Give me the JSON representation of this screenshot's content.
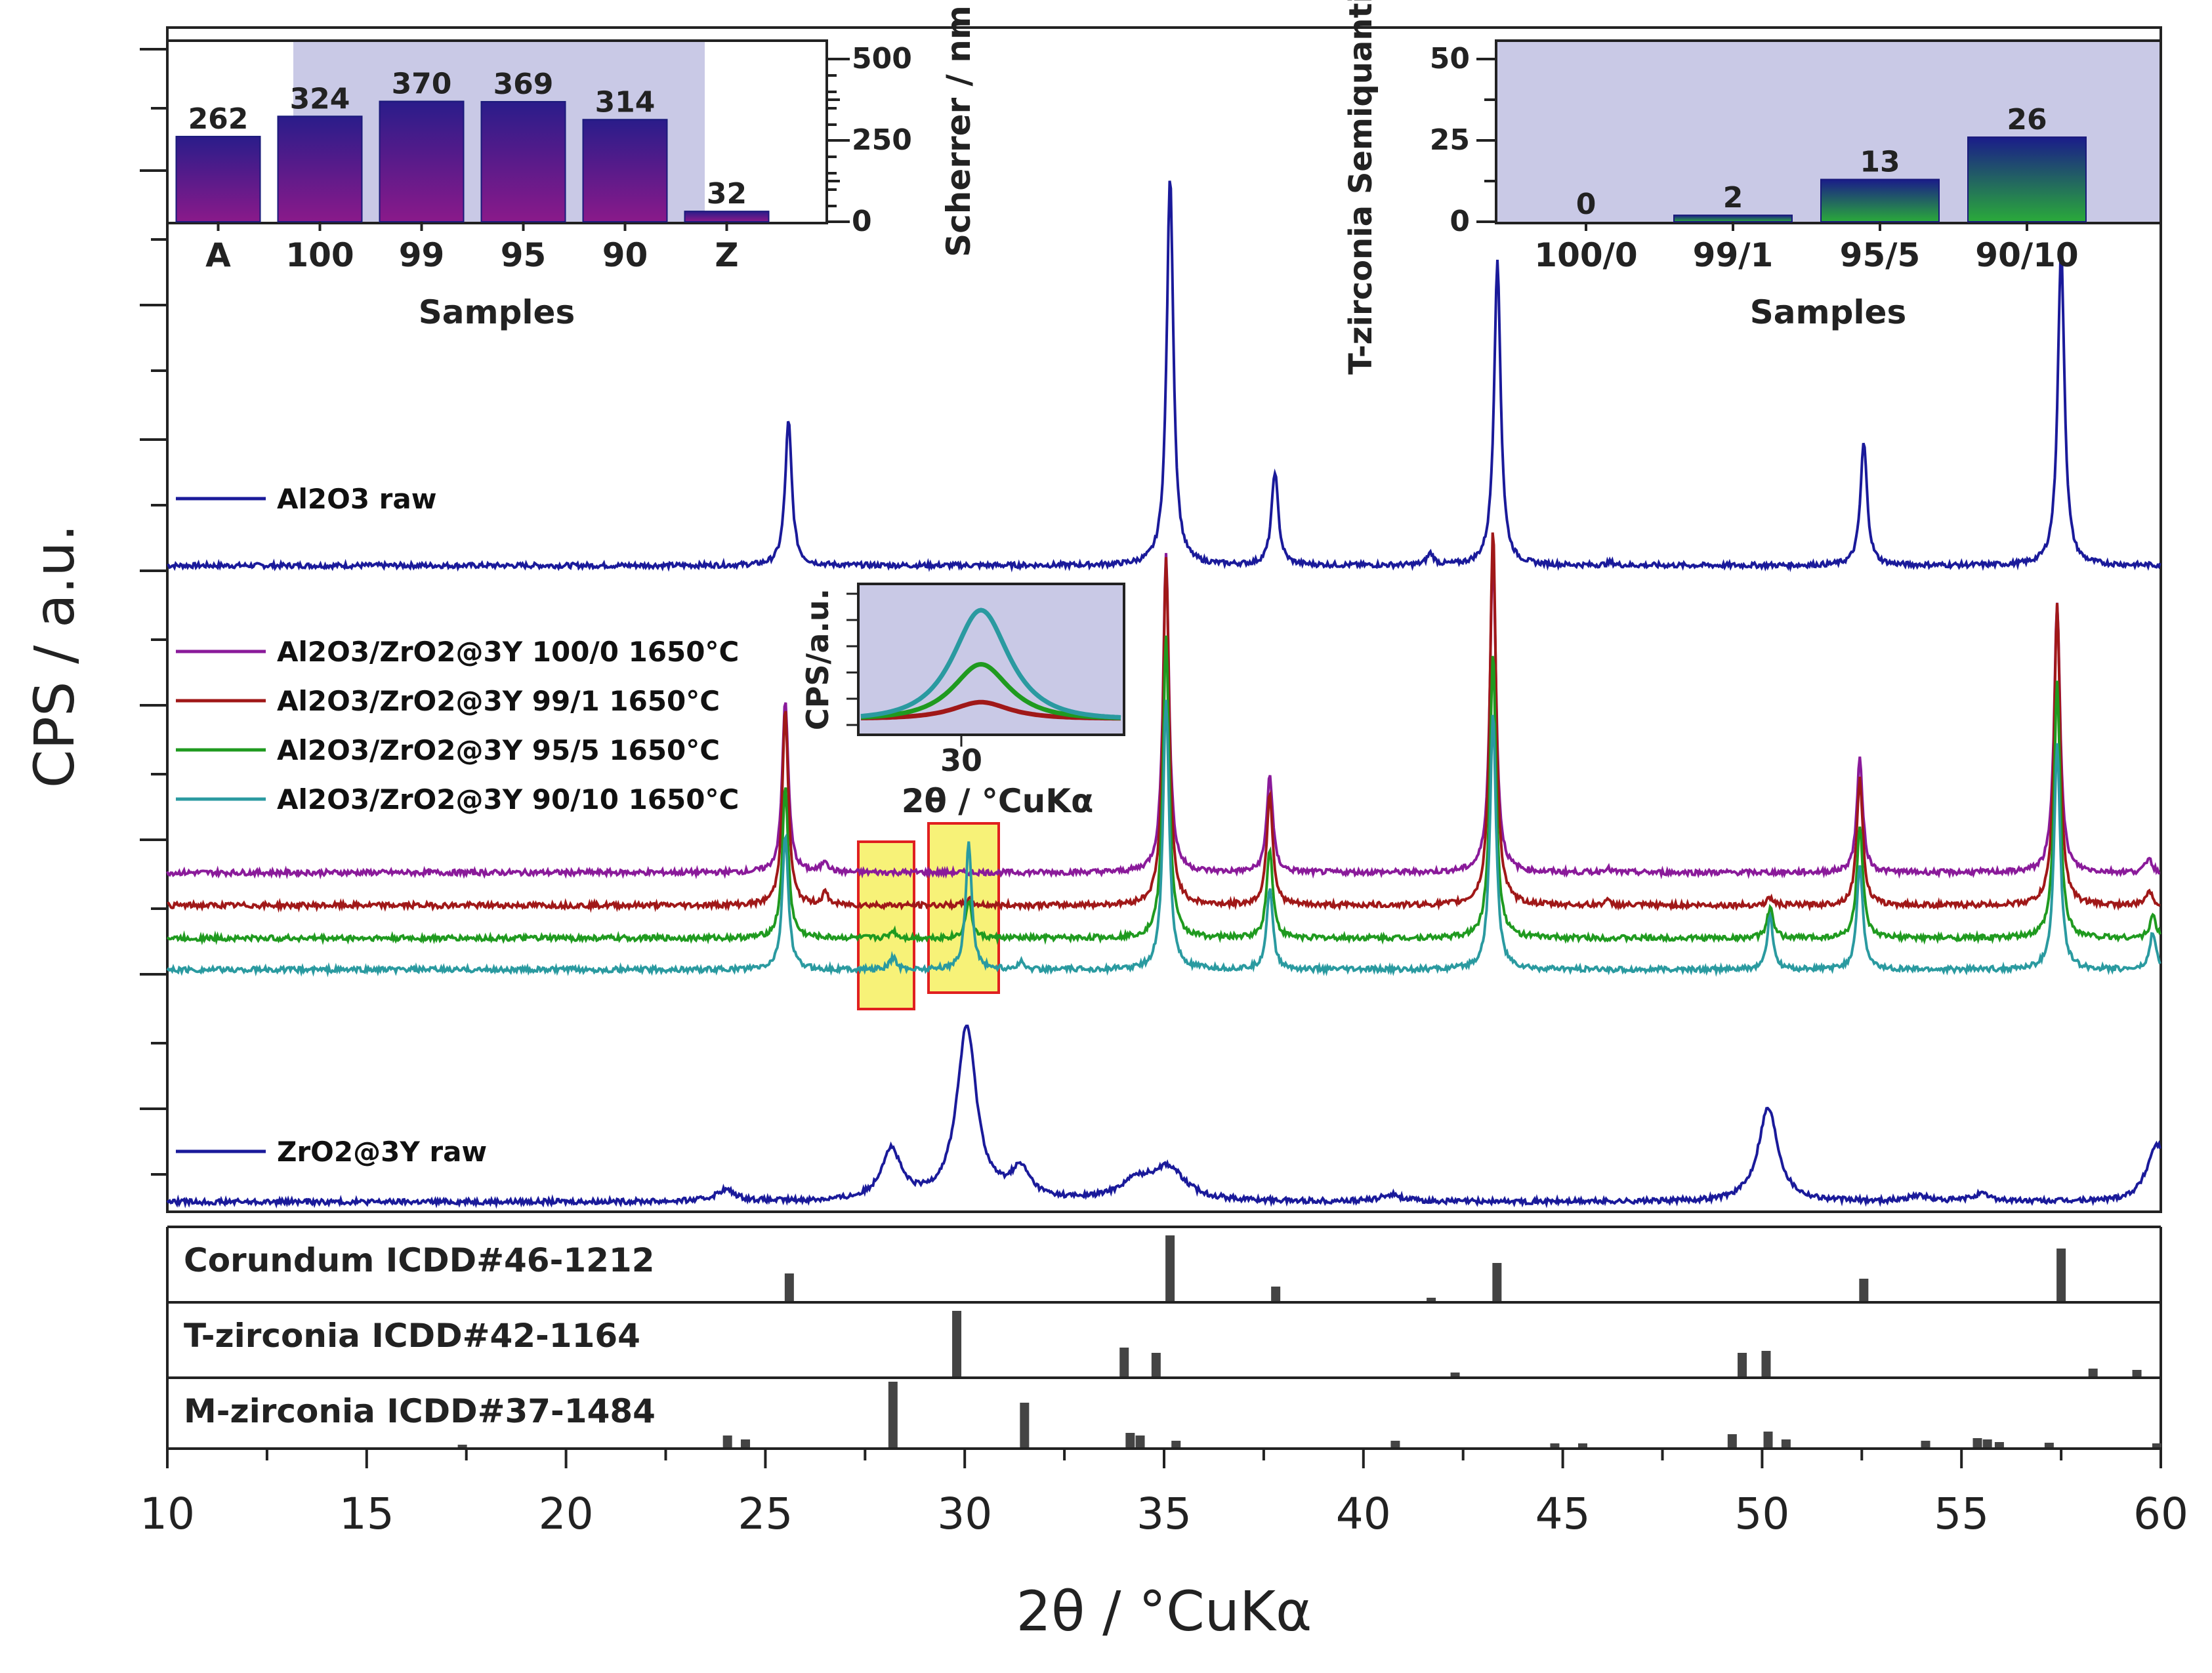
{
  "chart_data": [
    {
      "id": "main",
      "type": "line",
      "xlabel": "2θ / °CuKα",
      "ylabel": "CPS / a.u.",
      "xlim": [
        10,
        60
      ],
      "x_ticks": [
        "10",
        "15",
        "20",
        "25",
        "30",
        "35",
        "40",
        "45",
        "50",
        "55",
        "60"
      ],
      "series": [
        {
          "name": "Al2O3 raw",
          "color": "#1a1a9a",
          "peaks": [
            [
              25.58,
              1.0
            ],
            [
              35.15,
              2.7
            ],
            [
              37.78,
              0.65
            ],
            [
              41.68,
              0.08
            ],
            [
              43.36,
              2.1
            ],
            [
              46.2,
              0.02
            ],
            [
              52.55,
              0.85
            ],
            [
              57.5,
              2.2
            ]
          ]
        },
        {
          "name": "Al2O3/ZrO2@3Y 100/0 1650°C",
          "color": "#8a1a9a",
          "peaks": [
            [
              25.5,
              1.15
            ],
            [
              26.5,
              0.08
            ],
            [
              35.05,
              2.1
            ],
            [
              37.65,
              0.65
            ],
            [
              43.25,
              2.15
            ],
            [
              46.1,
              0.03
            ],
            [
              52.45,
              0.75
            ],
            [
              57.4,
              1.8
            ],
            [
              59.7,
              0.1
            ]
          ]
        },
        {
          "name": "Al2O3/ZrO2@3Y 99/1 1650°C",
          "color": "#a01818",
          "peaks": [
            [
              25.5,
              1.3
            ],
            [
              26.5,
              0.08
            ],
            [
              30.1,
              0.04
            ],
            [
              35.05,
              2.3
            ],
            [
              37.65,
              0.75
            ],
            [
              43.25,
              2.5
            ],
            [
              46.1,
              0.03
            ],
            [
              50.2,
              0.05
            ],
            [
              52.45,
              0.85
            ],
            [
              57.4,
              2.0
            ],
            [
              59.7,
              0.1
            ]
          ]
        },
        {
          "name": "Al2O3/ZrO2@3Y 95/5 1650°C",
          "color": "#1f9a1f",
          "peaks": [
            [
              25.5,
              1.0
            ],
            [
              28.2,
              0.05
            ],
            [
              30.1,
              0.25
            ],
            [
              35.05,
              2.0
            ],
            [
              37.65,
              0.6
            ],
            [
              43.25,
              1.9
            ],
            [
              50.2,
              0.2
            ],
            [
              52.45,
              0.75
            ],
            [
              57.4,
              1.7
            ],
            [
              59.8,
              0.15
            ]
          ]
        },
        {
          "name": "Al2O3/ZrO2@3Y 90/10 1650°C",
          "color": "#2a9aa0",
          "peaks": [
            [
              25.5,
              0.9
            ],
            [
              28.2,
              0.08
            ],
            [
              30.1,
              0.85
            ],
            [
              31.4,
              0.05
            ],
            [
              35.05,
              1.8
            ],
            [
              37.65,
              0.55
            ],
            [
              43.25,
              1.7
            ],
            [
              50.2,
              0.35
            ],
            [
              52.45,
              0.7
            ],
            [
              57.4,
              1.5
            ],
            [
              59.8,
              0.25
            ]
          ]
        },
        {
          "name": "ZrO2@3Y raw",
          "color": "#1a1a9a",
          "peaks": [
            [
              24.0,
              0.08
            ],
            [
              28.15,
              0.35
            ],
            [
              30.05,
              1.2
            ],
            [
              31.4,
              0.2
            ],
            [
              34.3,
              0.12
            ],
            [
              35.1,
              0.22
            ],
            [
              40.7,
              0.05
            ],
            [
              50.15,
              0.65
            ],
            [
              53.9,
              0.04
            ],
            [
              55.5,
              0.05
            ],
            [
              59.9,
              0.4
            ]
          ]
        }
      ],
      "reference_patterns": [
        {
          "name": "Corundum ICDD#46-1212",
          "lines": [
            [
              25.6,
              0.42
            ],
            [
              35.15,
              1.0
            ],
            [
              37.8,
              0.22
            ],
            [
              41.7,
              0.05
            ],
            [
              43.35,
              0.58
            ],
            [
              52.55,
              0.34
            ],
            [
              57.5,
              0.8
            ]
          ]
        },
        {
          "name": "T-zirconia ICDD#42-1164",
          "lines": [
            [
              29.8,
              1.0
            ],
            [
              34.0,
              0.44
            ],
            [
              34.8,
              0.36
            ],
            [
              42.3,
              0.06
            ],
            [
              49.5,
              0.36
            ],
            [
              50.1,
              0.39
            ],
            [
              58.3,
              0.12
            ],
            [
              59.4,
              0.1
            ]
          ]
        },
        {
          "name": "M-zirconia ICDD#37-1484",
          "lines": [
            [
              17.4,
              0.04
            ],
            [
              24.05,
              0.18
            ],
            [
              24.5,
              0.12
            ],
            [
              28.2,
              1.0
            ],
            [
              31.5,
              0.68
            ],
            [
              34.15,
              0.22
            ],
            [
              34.4,
              0.18
            ],
            [
              35.3,
              0.1
            ],
            [
              40.8,
              0.1
            ],
            [
              44.8,
              0.06
            ],
            [
              45.5,
              0.06
            ],
            [
              49.25,
              0.2
            ],
            [
              50.15,
              0.24
            ],
            [
              50.6,
              0.12
            ],
            [
              54.1,
              0.1
            ],
            [
              55.4,
              0.14
            ],
            [
              55.65,
              0.12
            ],
            [
              55.95,
              0.08
            ],
            [
              57.2,
              0.07
            ],
            [
              59.9,
              0.06
            ]
          ]
        }
      ]
    },
    {
      "id": "inset_scherrer",
      "type": "bar",
      "categories": [
        "A",
        "100",
        "99",
        "95",
        "90",
        "Z"
      ],
      "values": [
        262,
        324,
        370,
        369,
        314,
        32
      ],
      "xlabel": "Samples",
      "ylabel": "Scherrer / nm",
      "ylim": [
        0,
        500
      ],
      "y_ticks": [
        "0",
        "250",
        "500"
      ]
    },
    {
      "id": "inset_tzirconia",
      "type": "bar",
      "categories": [
        "100/0",
        "99/1",
        "95/5",
        "90/10"
      ],
      "values": [
        0,
        2,
        13,
        26
      ],
      "xlabel": "Samples",
      "ylabel": "T-zirconia Semiquanti / %",
      "ylim": [
        0,
        50
      ],
      "y_ticks": [
        "0",
        "25",
        "50"
      ]
    },
    {
      "id": "inset_peak",
      "type": "line",
      "xlabel": "2θ / °CuKα",
      "ylabel": "CPS/a.u.",
      "x_ticks": [
        "30"
      ],
      "series": [
        {
          "name": "99/1",
          "color": "#a01818",
          "amplitude": 0.15
        },
        {
          "name": "95/5",
          "color": "#1f9a1f",
          "amplitude": 0.5
        },
        {
          "name": "90/10",
          "color": "#2a9aa0",
          "amplitude": 1.0
        }
      ]
    }
  ]
}
